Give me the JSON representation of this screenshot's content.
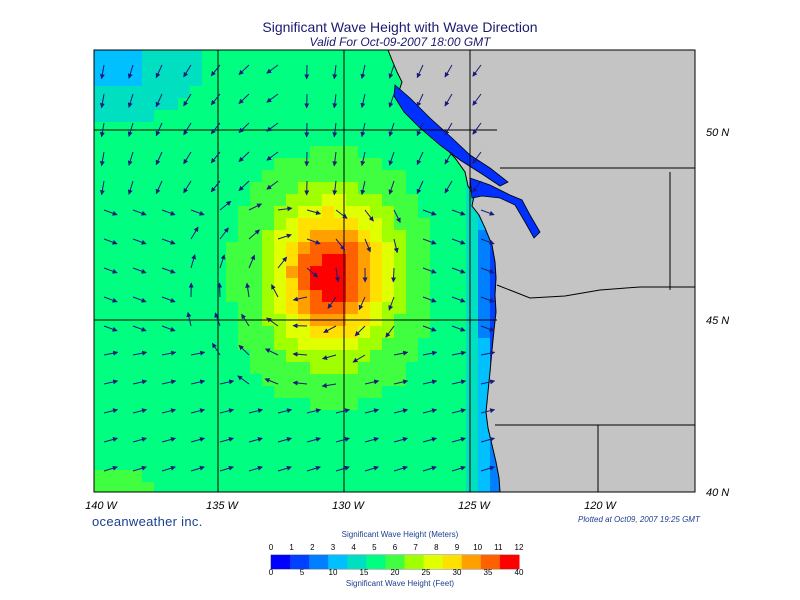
{
  "header": {
    "title": "Significant Wave Height with Wave Direction",
    "subtitle": "Valid For Oct-09-2007 18:00 GMT"
  },
  "map": {
    "longitude_labels": [
      "140 W",
      "135 W",
      "130 W",
      "125 W",
      "120 W"
    ],
    "latitude_labels": [
      "50 N",
      "45 N",
      "40 N"
    ],
    "land_color": "#c4c4c4",
    "coast_line_color": "#000000",
    "grid_color": "#000000",
    "arrow_color": "#1a1a7a",
    "max_wave_height_region": "around 130 W / 45-47 N"
  },
  "footer": {
    "brand": "oceanweather inc.",
    "plotted": "Plotted at Oct09, 2007 19:25 GMT"
  },
  "colorbar": {
    "top_title": "Significant Wave Height (Meters)",
    "bottom_title": "Significant Wave Height (Feet)",
    "meter_ticks": [
      "0",
      "1",
      "2",
      "3",
      "4",
      "5",
      "6",
      "7",
      "8",
      "9",
      "10",
      "11",
      "12"
    ],
    "feet_ticks": [
      "0",
      "5",
      "10",
      "15",
      "20",
      "25",
      "30",
      "35",
      "40"
    ],
    "colors": [
      "#0000ff",
      "#0040ff",
      "#0080ff",
      "#00c0ff",
      "#00e0c0",
      "#00ff80",
      "#40ff40",
      "#a0ff00",
      "#e0ff00",
      "#ffe000",
      "#ffa000",
      "#ff6000",
      "#ff0000"
    ]
  }
}
